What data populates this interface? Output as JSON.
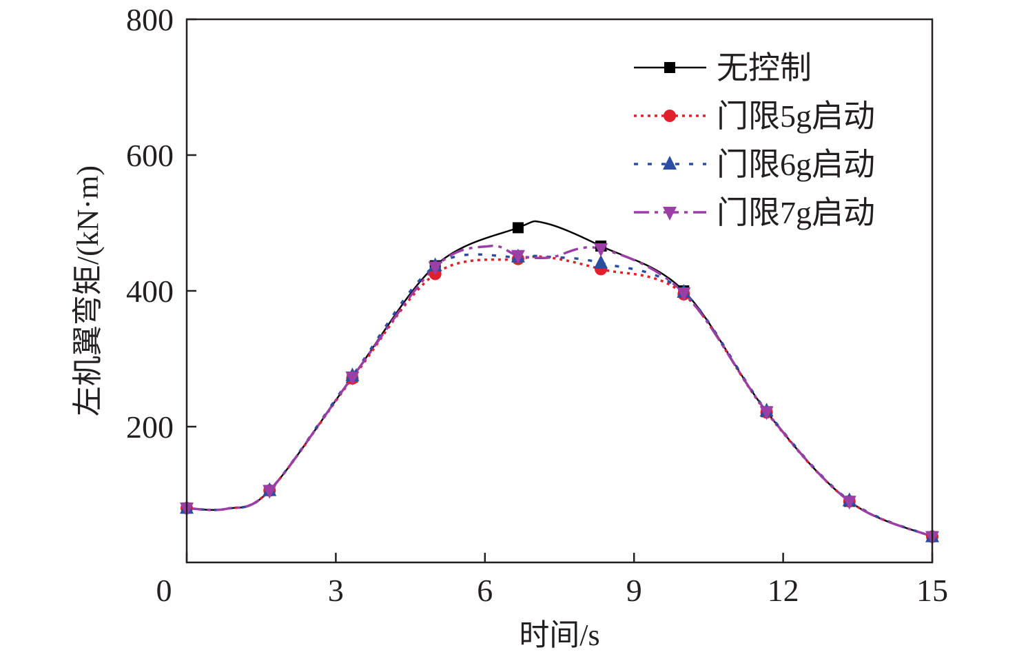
{
  "chart_data": {
    "type": "line",
    "title": "",
    "xlabel": "时间/s",
    "ylabel": "左机翼弯矩/(kN·m)",
    "xlim": [
      0,
      15
    ],
    "ylim": [
      0,
      800
    ],
    "xticks": [
      "0",
      "3",
      "6",
      "9",
      "12",
      "15"
    ],
    "yticks": [
      "200",
      "400",
      "600",
      "800"
    ],
    "grid": false,
    "legend_position": "top-right",
    "marker_x": [
      0,
      1.667,
      3.333,
      5.0,
      6.667,
      8.333,
      10.0,
      11.667,
      13.333,
      15
    ],
    "series": [
      {
        "name": "无控制",
        "color": "#000000",
        "marker": "square",
        "dash": "",
        "points": [
          [
            0,
            80
          ],
          [
            0.8,
            79
          ],
          [
            1.667,
            106
          ],
          [
            3.333,
            273
          ],
          [
            5.0,
            437
          ],
          [
            6.667,
            493
          ],
          [
            7.2,
            500
          ],
          [
            8.333,
            466
          ],
          [
            10.0,
            400
          ],
          [
            11.667,
            222
          ],
          [
            13.333,
            90
          ],
          [
            15,
            38
          ]
        ]
      },
      {
        "name": "门限5g启动",
        "color": "#e0202a",
        "marker": "circle",
        "dash": "4 6",
        "points": [
          [
            0,
            80
          ],
          [
            0.8,
            79
          ],
          [
            1.667,
            106
          ],
          [
            3.333,
            271
          ],
          [
            5.0,
            425
          ],
          [
            6.667,
            447
          ],
          [
            7.3,
            449
          ],
          [
            8.333,
            432
          ],
          [
            10.0,
            395
          ],
          [
            11.667,
            221
          ],
          [
            13.333,
            90
          ],
          [
            15,
            38
          ]
        ]
      },
      {
        "name": "门限6g启动",
        "color": "#2b4ea2",
        "marker": "triangle-up",
        "dash": "6 14",
        "points": [
          [
            0,
            80
          ],
          [
            0.8,
            79
          ],
          [
            1.667,
            106
          ],
          [
            3.333,
            275
          ],
          [
            5.0,
            437
          ],
          [
            6.667,
            450
          ],
          [
            7.3,
            450
          ],
          [
            8.333,
            441
          ],
          [
            10.0,
            398
          ],
          [
            11.667,
            223
          ],
          [
            13.333,
            91
          ],
          [
            15,
            38
          ]
        ]
      },
      {
        "name": "门限7g启动",
        "color": "#9b3fa6",
        "marker": "triangle-down",
        "dash": "22 8 5 8",
        "points": [
          [
            0,
            80
          ],
          [
            0.8,
            79
          ],
          [
            1.667,
            106
          ],
          [
            3.333,
            273
          ],
          [
            5.0,
            435
          ],
          [
            6.1,
            466
          ],
          [
            6.667,
            452
          ],
          [
            7.3,
            449
          ],
          [
            8.333,
            462
          ],
          [
            10.0,
            397
          ],
          [
            11.667,
            222
          ],
          [
            13.333,
            90
          ],
          [
            15,
            38
          ]
        ]
      }
    ]
  }
}
